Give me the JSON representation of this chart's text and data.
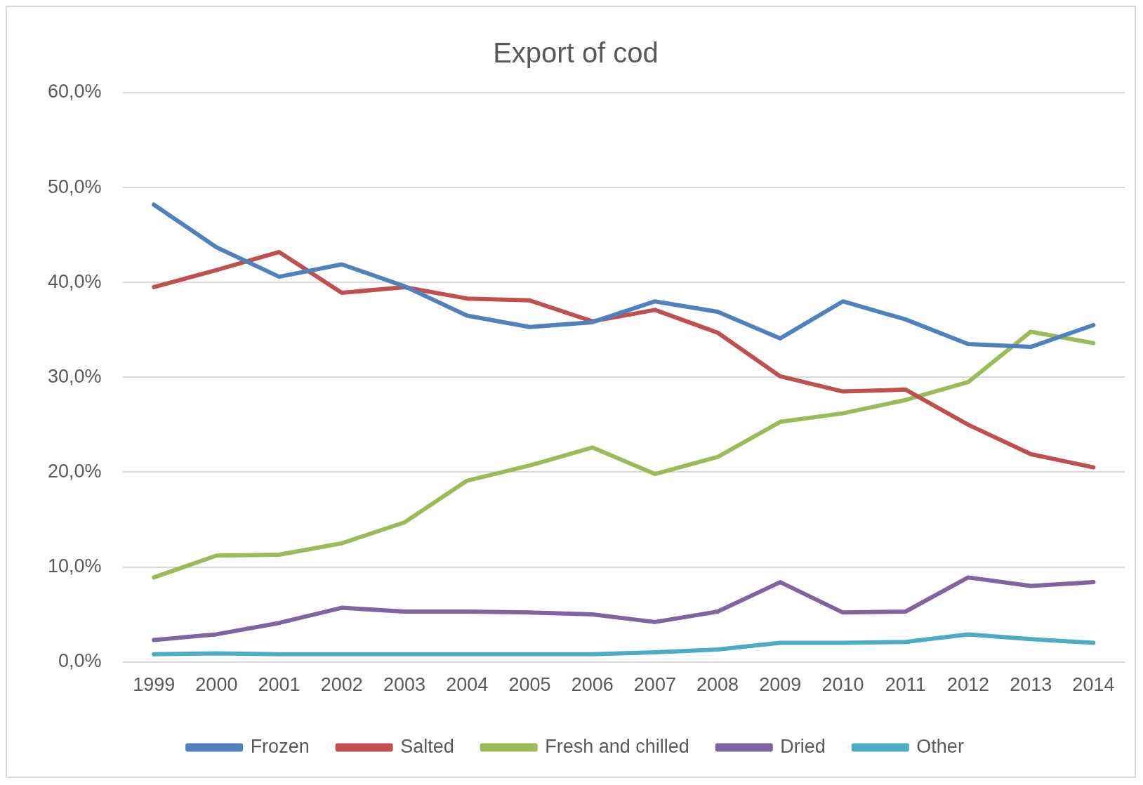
{
  "chart_data": {
    "type": "line",
    "title": "Export of cod",
    "categories": [
      "1999",
      "2000",
      "2001",
      "2002",
      "2003",
      "2004",
      "2005",
      "2006",
      "2007",
      "2008",
      "2009",
      "2010",
      "2011",
      "2012",
      "2013",
      "2014"
    ],
    "series": [
      {
        "name": "Frozen",
        "color": "#4f81bd",
        "values": [
          48.2,
          43.7,
          40.6,
          41.9,
          39.6,
          36.5,
          35.3,
          35.8,
          38.0,
          36.9,
          34.1,
          38.0,
          36.1,
          33.5,
          33.2,
          35.5
        ]
      },
      {
        "name": "Salted",
        "color": "#c0504d",
        "values": [
          39.5,
          41.3,
          43.2,
          38.9,
          39.5,
          38.3,
          38.1,
          35.9,
          37.1,
          34.7,
          30.1,
          28.5,
          28.7,
          25.0,
          21.9,
          20.5
        ]
      },
      {
        "name": "Fresh and chilled",
        "color": "#9bbb59",
        "values": [
          8.9,
          11.2,
          11.3,
          12.5,
          14.7,
          19.1,
          20.7,
          22.6,
          19.8,
          21.6,
          25.3,
          26.2,
          27.6,
          29.5,
          34.8,
          33.6
        ]
      },
      {
        "name": "Dried",
        "color": "#8064a2",
        "values": [
          2.3,
          2.9,
          4.1,
          5.7,
          5.3,
          5.3,
          5.2,
          5.0,
          4.2,
          5.3,
          8.4,
          5.2,
          5.3,
          8.9,
          8.0,
          8.4
        ]
      },
      {
        "name": "Other",
        "color": "#4bacc6",
        "values": [
          0.8,
          0.9,
          0.8,
          0.8,
          0.8,
          0.8,
          0.8,
          0.8,
          1.0,
          1.3,
          2.0,
          2.0,
          2.1,
          2.9,
          2.4,
          2.0
        ]
      }
    ],
    "ylim": [
      0,
      60
    ],
    "yticks": [
      {
        "value": 0,
        "label": "0,0%"
      },
      {
        "value": 10,
        "label": "10,0%"
      },
      {
        "value": 20,
        "label": "20,0%"
      },
      {
        "value": 30,
        "label": "30,0%"
      },
      {
        "value": 40,
        "label": "40,0%"
      },
      {
        "value": 50,
        "label": "50,0%"
      },
      {
        "value": 60,
        "label": "60,0%"
      }
    ],
    "grid": "y",
    "legend": "bottom",
    "marker": "none"
  }
}
